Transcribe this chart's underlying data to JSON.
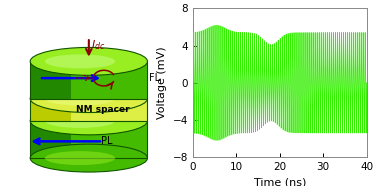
{
  "signal_freq": 2.2,
  "amplitude_base": 5.5,
  "time_start": 0,
  "time_end": 40,
  "num_points": 8000,
  "ylim": [
    -8,
    8
  ],
  "xlim": [
    0,
    40
  ],
  "yticks": [
    -8,
    -4,
    0,
    4,
    8
  ],
  "xticks": [
    0,
    10,
    20,
    30,
    40
  ],
  "ylabel": "Voltage (mV)",
  "xlabel": "Time (ns)",
  "line_color": "#33ee00",
  "bg_color": "#ffffff",
  "plot_bg": "#ffffff",
  "cylinder_green_dark": "#228800",
  "cylinder_green_mid": "#44bb00",
  "cylinder_green_light": "#99ee22",
  "cylinder_yellow": "#ddee44",
  "cylinder_yellow_light": "#eeff88",
  "idc_label": "$I_{dc}$",
  "fl_label": "FL",
  "nm_label": "NM spacer",
  "pl_label": "PL"
}
